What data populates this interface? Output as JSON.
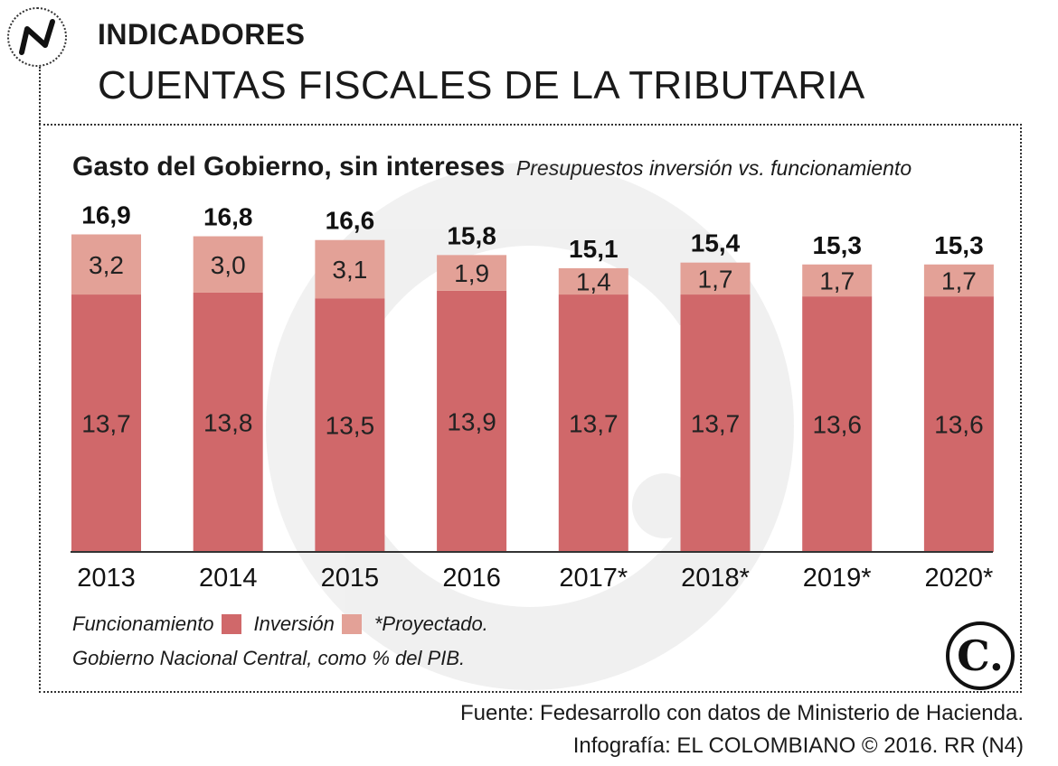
{
  "header": {
    "kicker": "INDICADORES",
    "headline": "CUENTAS FISCALES DE LA TRIBUTARIA",
    "logo_icon": "n-logo-icon"
  },
  "chart_data": {
    "type": "bar",
    "stacked": true,
    "title": "Gasto del Gobierno, sin intereses",
    "subtitle": "Presupuestos inversión vs. funcionamiento",
    "categories": [
      "2013",
      "2014",
      "2015",
      "2016",
      "2017*",
      "2018*",
      "2019*",
      "2020*"
    ],
    "series": [
      {
        "name": "Funcionamiento",
        "color": "#d0686a",
        "values": [
          13.7,
          13.8,
          13.5,
          13.9,
          13.7,
          13.7,
          13.6,
          13.6
        ],
        "labels": [
          "13,7",
          "13,8",
          "13,5",
          "13,9",
          "13,7",
          "13,7",
          "13,6",
          "13,6"
        ]
      },
      {
        "name": "Inversión",
        "color": "#e3a197",
        "values": [
          3.2,
          3.0,
          3.1,
          1.9,
          1.4,
          1.7,
          1.7,
          1.7
        ],
        "labels": [
          "3,2",
          "3,0",
          "3,1",
          "1,9",
          "1,4",
          "1,7",
          "1,7",
          "1,7"
        ]
      }
    ],
    "totals": [
      16.9,
      16.8,
      16.6,
      15.8,
      15.1,
      15.4,
      15.3,
      15.3
    ],
    "total_labels": [
      "16,9",
      "16,8",
      "16,6",
      "15,8",
      "15,1",
      "15,4",
      "15,3",
      "15,3"
    ],
    "ylim": [
      0,
      17
    ],
    "grid": false,
    "xlabel": "",
    "ylabel": ""
  },
  "legend": {
    "funcionamiento": "Funcionamiento",
    "inversion": "Inversión",
    "proyectado": "*Proyectado.",
    "colors": {
      "funcionamiento": "#d0686a",
      "inversion": "#e3a197"
    }
  },
  "note": "Gobierno Nacional Central, como % del PIB.",
  "brand_badge": "C.",
  "footer": {
    "source": "Fuente: Fedesarrollo con datos de Ministerio de Hacienda.",
    "credit": "Infografía: EL COLOMBIANO © 2016. RR (N4)"
  }
}
